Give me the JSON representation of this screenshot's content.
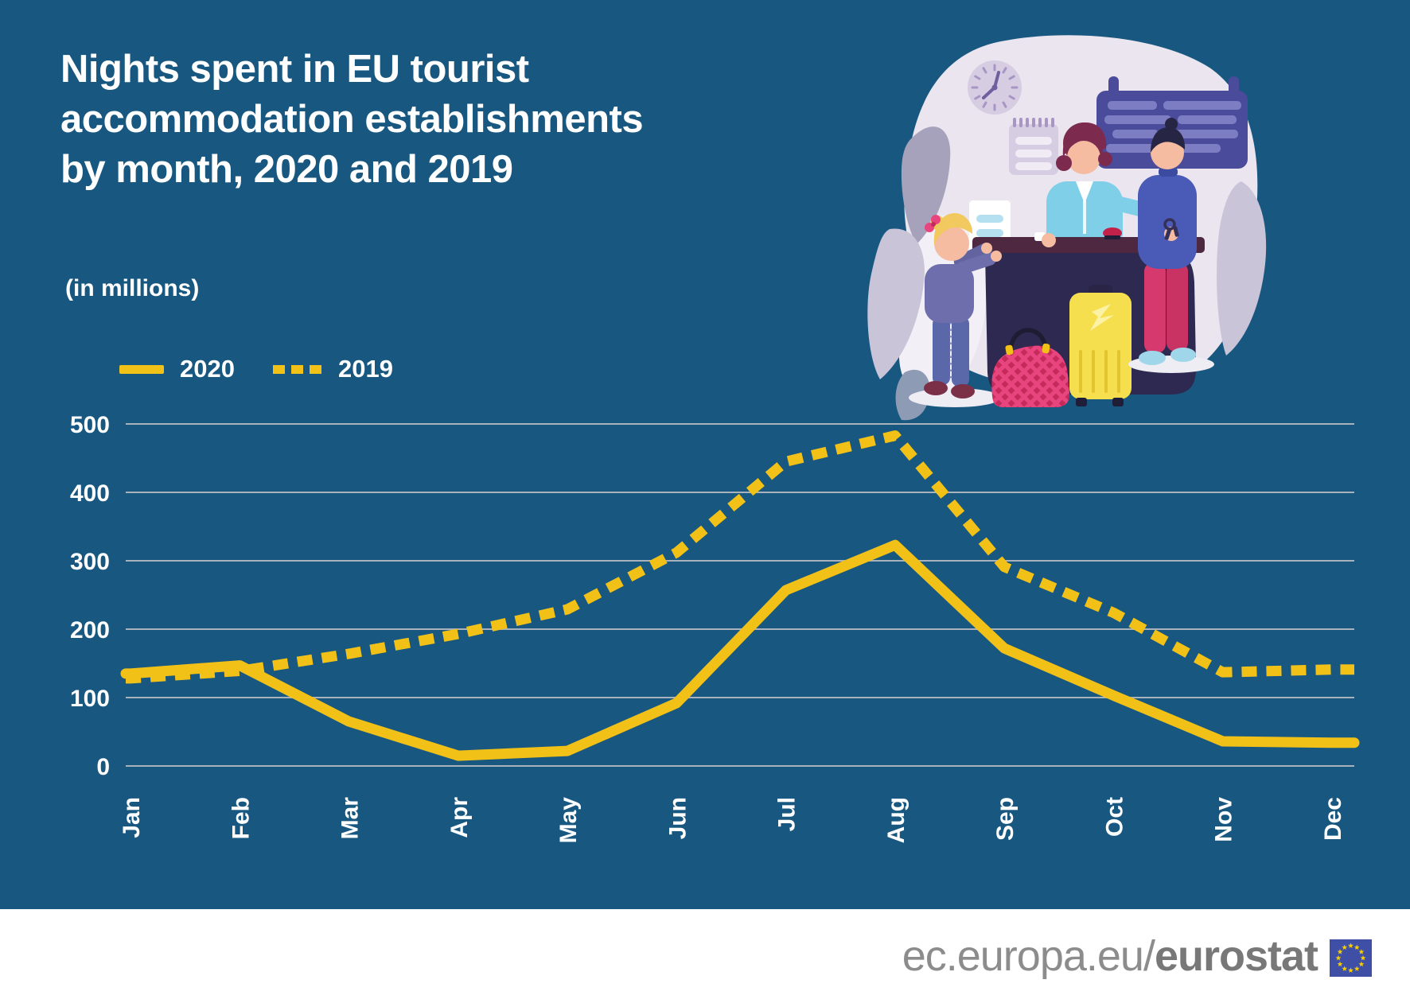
{
  "page": {
    "background_color": "#175780",
    "accent_yellow": "#F2C118",
    "footer_background": "#FFFFFF"
  },
  "header": {
    "title_line1": "Nights spent in EU tourist",
    "title_line2": "accommodation establishments",
    "title_line3": "by month, 2020 and 2019",
    "subtitle": "(in millions)"
  },
  "legend": {
    "items": [
      {
        "label": "2020",
        "line_style": "solid"
      },
      {
        "label": "2019",
        "line_style": "dashed"
      }
    ]
  },
  "chart_data": {
    "type": "line",
    "title": "Nights spent in EU tourist accommodation establishments by month, 2020 and 2019",
    "unit": "in millions",
    "categories": [
      "Jan",
      "Feb",
      "Mar",
      "Apr",
      "May",
      "Jun",
      "Jul",
      "Aug",
      "Sep",
      "Oct",
      "Nov",
      "Dec"
    ],
    "series": [
      {
        "name": "2020",
        "line_style": "solid",
        "color": "#F2C118",
        "values": [
          135,
          147,
          65,
          15,
          22,
          92,
          257,
          323,
          172,
          103,
          36,
          34
        ]
      },
      {
        "name": "2019",
        "line_style": "dashed",
        "color": "#F2C118",
        "values": [
          128,
          139,
          164,
          193,
          229,
          312,
          445,
          483,
          291,
          224,
          137,
          141
        ]
      }
    ],
    "ylim": [
      0,
      500
    ],
    "yticks": [
      0,
      100,
      200,
      300,
      400,
      500
    ],
    "grid": true,
    "gridline_color": "#A9B2BC",
    "axis_label_color": "#FFFFFF",
    "legend_position": "top-left",
    "x_tick_rotation": -90
  },
  "footer": {
    "url_regular": "ec.europa.eu/",
    "url_bold": "eurostat",
    "text_color": "#8C8C8C",
    "flag": {
      "background": "#3E4FA5",
      "star_color": "#F7CE00",
      "star_count": 12
    }
  },
  "illustration": {
    "name": "hotel-reception-checkin-scene",
    "description": "Receptionist handing room keys to a traveller at a hotel front desk; a child leans on the desk beside a yellow suitcase and a plaid travel bag",
    "palette": {
      "blob": "#EAE5EF",
      "desk": "#2E2950",
      "desk_top": "#4D2840",
      "suitcase": "#F5DF4F",
      "bag": "#C62A5B",
      "uniform": "#7FCFE9",
      "guest_sweater": "#4A5BB7",
      "guest_pants": "#D5396D"
    }
  }
}
